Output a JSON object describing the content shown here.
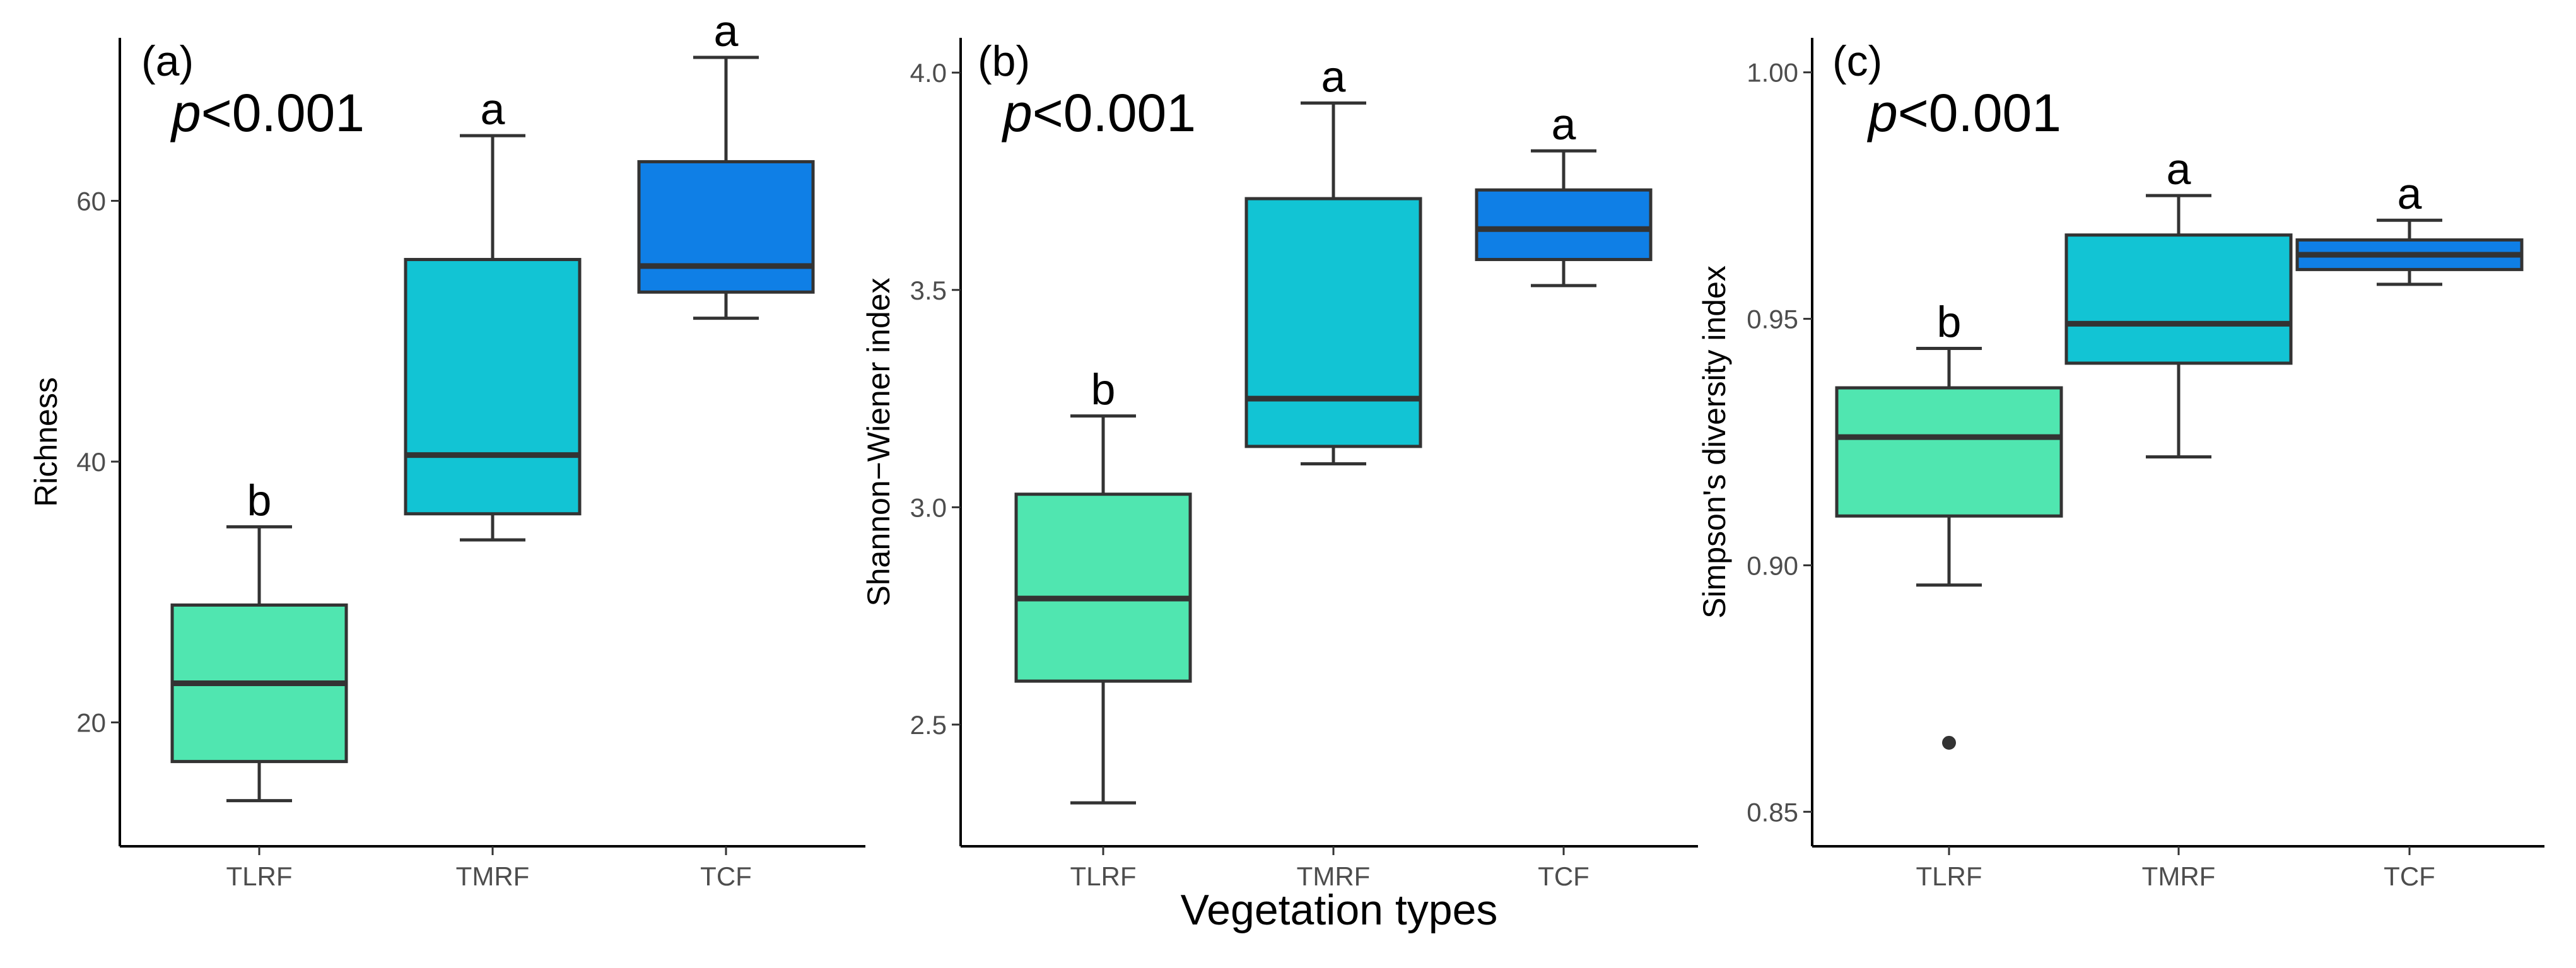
{
  "chart_data": [
    {
      "type": "box",
      "panel_label": "(a)",
      "pvalue_symbol": "p",
      "pvalue_text": "<0.001",
      "ylabel": "Richness",
      "ylim": [
        10.5,
        72.5
      ],
      "yticks": [
        20,
        40,
        60
      ],
      "categories": [
        "TLRF",
        "TMRF",
        "TCF"
      ],
      "colors": [
        "#50E6B0",
        "#12C4D4",
        "#0F7FE6"
      ],
      "boxes": [
        {
          "category": "TLRF",
          "whisker_low": 14,
          "q1": 17,
          "median": 23,
          "q3": 29,
          "whisker_high": 35,
          "outliers": [],
          "letter": "b"
        },
        {
          "category": "TMRF",
          "whisker_low": 34,
          "q1": 36,
          "median": 40.5,
          "q3": 55.5,
          "whisker_high": 65,
          "outliers": [],
          "letter": "a"
        },
        {
          "category": "TCF",
          "whisker_low": 51,
          "q1": 53,
          "median": 55,
          "q3": 63,
          "whisker_high": 71,
          "outliers": [],
          "letter": "a"
        }
      ]
    },
    {
      "type": "box",
      "panel_label": "(b)",
      "pvalue_symbol": "p",
      "pvalue_text": "<0.001",
      "ylabel": "Shannon−Wiener index",
      "ylim": [
        2.22,
        4.08
      ],
      "yticks": [
        "2.5",
        "3.0",
        "3.5",
        "4.0"
      ],
      "categories": [
        "TLRF",
        "TMRF",
        "TCF"
      ],
      "colors": [
        "#50E6B0",
        "#12C4D4",
        "#0F7FE6"
      ],
      "boxes": [
        {
          "category": "TLRF",
          "whisker_low": 2.32,
          "q1": 2.6,
          "median": 2.79,
          "q3": 3.03,
          "whisker_high": 3.21,
          "outliers": [],
          "letter": "b"
        },
        {
          "category": "TMRF",
          "whisker_low": 3.1,
          "q1": 3.14,
          "median": 3.25,
          "q3": 3.71,
          "whisker_high": 3.93,
          "outliers": [],
          "letter": "a"
        },
        {
          "category": "TCF",
          "whisker_low": 3.51,
          "q1": 3.57,
          "median": 3.64,
          "q3": 3.73,
          "whisker_high": 3.82,
          "outliers": [],
          "letter": "a"
        }
      ]
    },
    {
      "type": "box",
      "panel_label": "(c)",
      "pvalue_symbol": "p",
      "pvalue_text": "<0.001",
      "ylabel": "Simpson's diversity index",
      "ylim": [
        0.843,
        1.007
      ],
      "yticks": [
        "0.85",
        "0.90",
        "0.95",
        "1.00"
      ],
      "categories": [
        "TLRF",
        "TMRF",
        "TCF"
      ],
      "colors": [
        "#50E6B0",
        "#12C4D4",
        "#0F7FE6"
      ],
      "boxes": [
        {
          "category": "TLRF",
          "whisker_low": 0.896,
          "q1": 0.91,
          "median": 0.926,
          "q3": 0.936,
          "whisker_high": 0.944,
          "outliers": [
            0.864
          ],
          "letter": "b"
        },
        {
          "category": "TMRF",
          "whisker_low": 0.922,
          "q1": 0.941,
          "median": 0.949,
          "q3": 0.967,
          "whisker_high": 0.975,
          "outliers": [],
          "letter": "a"
        },
        {
          "category": "TCF",
          "whisker_low": 0.957,
          "q1": 0.96,
          "median": 0.963,
          "q3": 0.966,
          "whisker_high": 0.97,
          "outliers": [],
          "letter": "a"
        }
      ]
    }
  ],
  "xlabel": "Vegetation types"
}
